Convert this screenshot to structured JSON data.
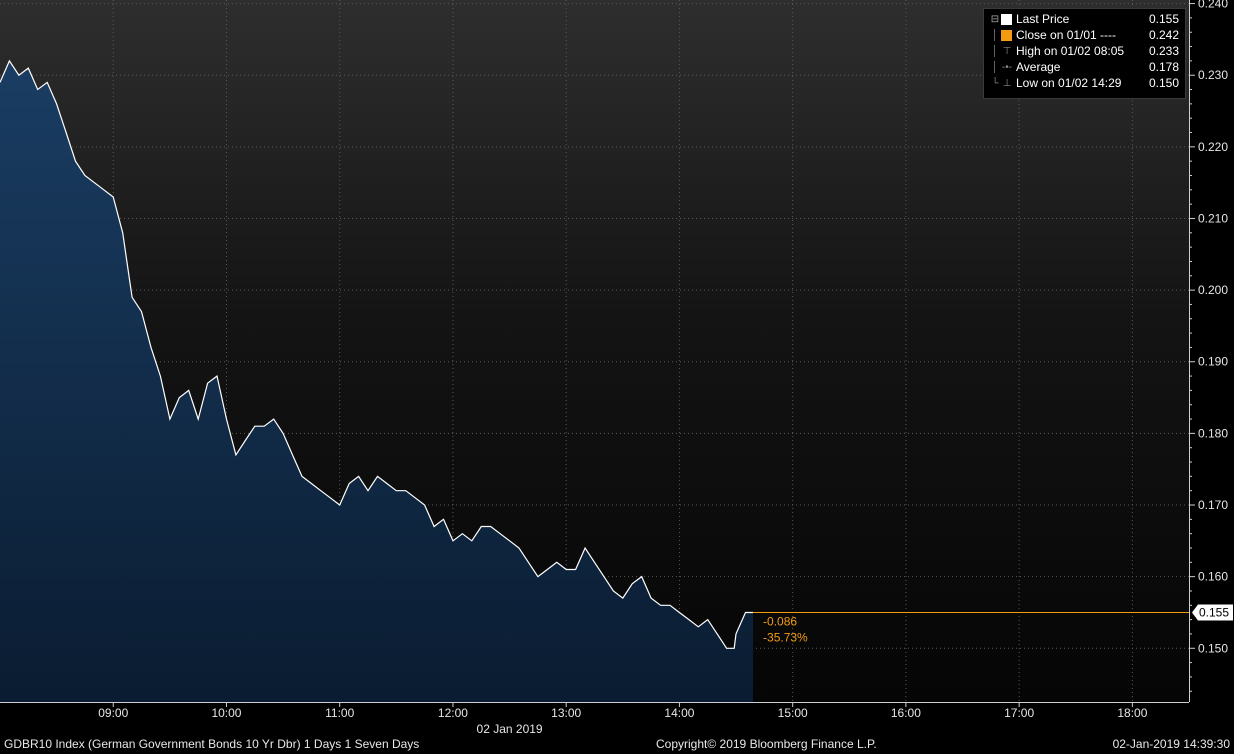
{
  "chart_data": {
    "type": "area",
    "title": "",
    "xlabel": "02 Jan 2019",
    "ylabel": "",
    "ylim": [
      0.1425,
      0.2405
    ],
    "xlim": [
      "08:00",
      "18:30"
    ],
    "y_ticks": [
      "0.150",
      "0.160",
      "0.170",
      "0.180",
      "0.190",
      "0.200",
      "0.210",
      "0.220",
      "0.230",
      "0.240"
    ],
    "x_ticks": [
      "09:00",
      "10:00",
      "11:00",
      "12:00",
      "13:00",
      "14:00",
      "15:00",
      "16:00",
      "17:00",
      "18:00"
    ],
    "grid": true,
    "legend_position": "top-right",
    "series": [
      {
        "name": "Last Price",
        "x": [
          "08:00",
          "08:05",
          "08:10",
          "08:15",
          "08:20",
          "08:25",
          "08:30",
          "08:35",
          "08:40",
          "08:45",
          "08:50",
          "08:55",
          "09:00",
          "09:05",
          "09:10",
          "09:15",
          "09:20",
          "09:25",
          "09:30",
          "09:35",
          "09:40",
          "09:45",
          "09:50",
          "09:55",
          "10:00",
          "10:05",
          "10:10",
          "10:15",
          "10:20",
          "10:25",
          "10:30",
          "10:35",
          "10:40",
          "10:45",
          "10:50",
          "10:55",
          "11:00",
          "11:05",
          "11:10",
          "11:15",
          "11:20",
          "11:25",
          "11:30",
          "11:35",
          "11:40",
          "11:45",
          "11:50",
          "11:55",
          "12:00",
          "12:05",
          "12:10",
          "12:15",
          "12:20",
          "12:25",
          "12:30",
          "12:35",
          "12:40",
          "12:45",
          "12:50",
          "12:55",
          "13:00",
          "13:05",
          "13:10",
          "13:15",
          "13:20",
          "13:25",
          "13:30",
          "13:35",
          "13:40",
          "13:45",
          "13:50",
          "13:55",
          "14:00",
          "14:05",
          "14:10",
          "14:15",
          "14:20",
          "14:25",
          "14:29",
          "14:30",
          "14:35",
          "14:39"
        ],
        "values": [
          0.229,
          0.232,
          0.23,
          0.231,
          0.228,
          0.229,
          0.226,
          0.222,
          0.218,
          0.216,
          0.215,
          0.214,
          0.213,
          0.208,
          0.199,
          0.197,
          0.192,
          0.188,
          0.182,
          0.185,
          0.186,
          0.182,
          0.187,
          0.188,
          0.182,
          0.177,
          0.179,
          0.181,
          0.181,
          0.182,
          0.18,
          0.177,
          0.174,
          0.173,
          0.172,
          0.171,
          0.17,
          0.173,
          0.174,
          0.172,
          0.174,
          0.173,
          0.172,
          0.172,
          0.171,
          0.17,
          0.167,
          0.168,
          0.165,
          0.166,
          0.165,
          0.167,
          0.167,
          0.166,
          0.165,
          0.164,
          0.162,
          0.16,
          0.161,
          0.162,
          0.161,
          0.161,
          0.164,
          0.162,
          0.16,
          0.158,
          0.157,
          0.159,
          0.16,
          0.157,
          0.156,
          0.156,
          0.155,
          0.154,
          0.153,
          0.154,
          0.152,
          0.15,
          0.15,
          0.152,
          0.155,
          0.155
        ]
      }
    ],
    "close_line": {
      "label": "Close on 01/01",
      "value": 0.242
    },
    "last_price_label": "0.155",
    "change_abs": "-0.086",
    "change_pct": "-35.73%",
    "colors": {
      "line": "#ffffff",
      "fill_top": "#17385b",
      "fill_bottom": "#0b1d33",
      "close": "#f39c12",
      "grid": "#5a5a5a",
      "axis_text": "#e6e6e6"
    }
  },
  "legend": [
    {
      "icon": "white-square",
      "label": "Last Price",
      "value": "0.155"
    },
    {
      "icon": "orange-square",
      "label": "Close on 01/01  ----",
      "value": "0.242"
    },
    {
      "icon": "high-marker",
      "label": "High on 01/02 08:05",
      "value": "0.233"
    },
    {
      "icon": "average-marker",
      "label": "Average",
      "value": "0.178"
    },
    {
      "icon": "low-marker",
      "label": "Low on 01/02 14:29",
      "value": "0.150"
    }
  ],
  "footer": {
    "left": "GDBR10 Index (German Government Bonds 10 Yr Dbr) 1 Days 1 Seven Days",
    "center": "Copyright© 2019 Bloomberg Finance L.P.",
    "right": "02-Jan-2019 14:39:30"
  }
}
